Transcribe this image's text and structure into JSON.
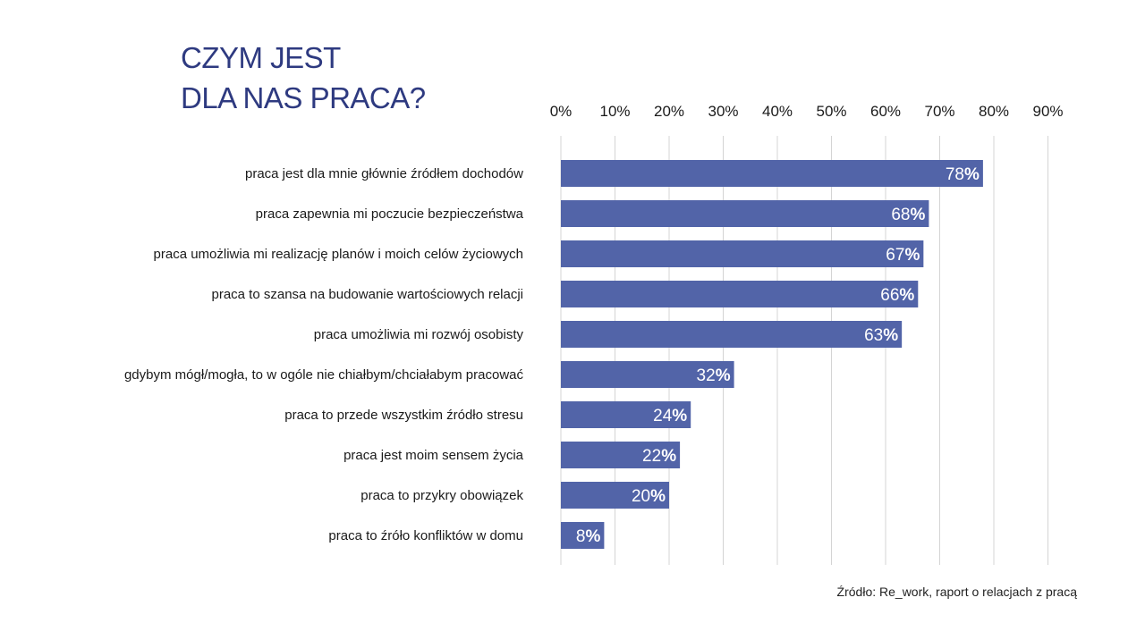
{
  "title": {
    "line1": "CZYM JEST",
    "line2": "DLA NAS PRACA?"
  },
  "source": "Źródło: Re_work, raport o relacjach z pracą",
  "colors": {
    "bar": "#5264a8",
    "title": "#2e3a80",
    "grid": "#d4d4d4",
    "text": "#1a1a1a",
    "label": "#ffffff"
  },
  "chart_data": {
    "type": "bar",
    "orientation": "horizontal",
    "categories": [
      "praca jest dla mnie głównie źródłem dochodów",
      "praca zapewnia mi poczucie bezpieczeństwa",
      "praca umożliwia mi realizację planów i moich celów życiowych",
      "praca to szansa na budowanie wartościowych relacji",
      "praca umożliwia mi rozwój osobisty",
      "gdybym mógł/mogła, to w ogóle nie chiałbym/chciałabym pracować",
      "praca to przede wszystkim źródło stresu",
      "praca jest moim sensem życia",
      "praca to przykry obowiązek",
      "praca to źróło konfliktów w domu"
    ],
    "values": [
      78,
      68,
      67,
      66,
      63,
      32,
      24,
      22,
      20,
      8
    ],
    "value_labels": [
      "78",
      "68",
      "67",
      "66",
      "63",
      "32",
      "24",
      "22",
      "20",
      "8"
    ],
    "value_suffix": "%",
    "xlim": [
      0,
      90
    ],
    "xticks": [
      "0%",
      "10%",
      "20%",
      "30%",
      "40%",
      "50%",
      "60%",
      "70%",
      "80%",
      "90%"
    ],
    "axis_position": "top",
    "grid": true
  }
}
